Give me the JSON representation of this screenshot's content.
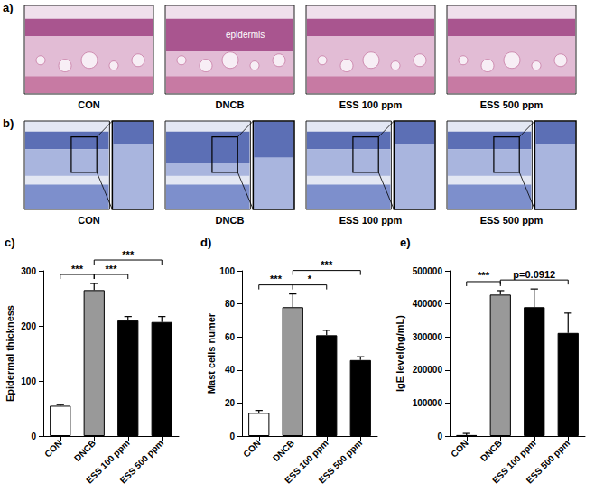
{
  "image_panels": [
    {
      "label": "a)",
      "captions": [
        "CON",
        "DNCB",
        "ESS 100 ppm",
        "ESS 500 ppm"
      ],
      "annotation": "epidermis"
    },
    {
      "label": "b)",
      "captions": [
        "CON",
        "DNCB",
        "ESS 100 ppm",
        "ESS 500 ppm"
      ]
    }
  ],
  "chart_data": [
    {
      "type": "bar",
      "title": "c)",
      "y_label": "Epidermal thickness",
      "categories": [
        "CON",
        "DNCB",
        "ESS 100 ppm",
        "ESS 500 ppm"
      ],
      "values": [
        55,
        265,
        210,
        207
      ],
      "errors": [
        2,
        12,
        7,
        10
      ],
      "colors": [
        "#ffffff",
        "#999999",
        "#000000",
        "#000000"
      ],
      "ylim": [
        0,
        300
      ],
      "yticks": [
        0,
        100,
        200,
        300
      ],
      "significance": [
        {
          "from": "CON",
          "to": "DNCB",
          "label": "***"
        },
        {
          "from": "DNCB",
          "to": "ESS 100 ppm",
          "label": "***"
        },
        {
          "from": "DNCB",
          "to": "ESS 500 ppm",
          "label": "***"
        }
      ]
    },
    {
      "type": "bar",
      "title": "d)",
      "y_label": "Mast cells numer",
      "categories": [
        "CON",
        "DNCB",
        "ESS 100 ppm",
        "ESS 500 ppm"
      ],
      "values": [
        14,
        78,
        61,
        46
      ],
      "errors": [
        1.5,
        8,
        3,
        2
      ],
      "colors": [
        "#ffffff",
        "#999999",
        "#000000",
        "#000000"
      ],
      "ylim": [
        0,
        100
      ],
      "yticks": [
        0,
        20,
        40,
        60,
        80,
        100
      ],
      "significance": [
        {
          "from": "CON",
          "to": "DNCB",
          "label": "***"
        },
        {
          "from": "DNCB",
          "to": "ESS 100 ppm",
          "label": "*"
        },
        {
          "from": "DNCB",
          "to": "ESS 500 ppm",
          "label": "***"
        }
      ]
    },
    {
      "type": "bar",
      "title": "e)",
      "y_label": "IgE level(ng/mL)",
      "categories": [
        "CON",
        "DNCB",
        "ESS 100 ppm",
        "ESS 500 ppm"
      ],
      "values": [
        3000,
        428000,
        390000,
        312000
      ],
      "errors": [
        5000,
        12000,
        55000,
        60000
      ],
      "colors": [
        "#ffffff",
        "#999999",
        "#000000",
        "#000000"
      ],
      "ylim": [
        0,
        500000
      ],
      "yticks": [
        0,
        100000,
        200000,
        300000,
        400000,
        500000
      ],
      "significance": [
        {
          "from": "CON",
          "to": "DNCB",
          "label": "***"
        },
        {
          "from": "DNCB",
          "to": "ESS 500 ppm",
          "label": "p=0.0912"
        }
      ]
    }
  ]
}
